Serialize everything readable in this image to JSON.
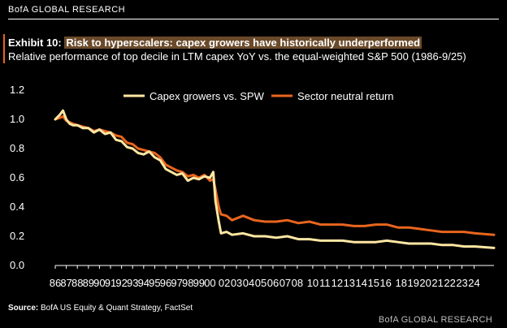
{
  "header": {
    "brand": "BofA GLOBAL RESEARCH",
    "exhibit_label": "Exhibit 10:",
    "title": "Risk to hyperscalers: capex growers have historically underperformed",
    "subtitle": "Relative performance of top decile in LTM capex YoY vs. the equal-weighted S&P 500 (1986-9/25)"
  },
  "footer": {
    "source_label": "Source:",
    "source_text": "BofA US Equity & Quant Strategy, FactSet",
    "brand": "BofA GLOBAL RESEARCH"
  },
  "colors": {
    "background": "#000000",
    "series_1": "#ffe7a3",
    "series_2": "#e8651e",
    "text": "#ffffff",
    "accent": "#e8651e"
  },
  "chart_data": {
    "type": "line",
    "title": "",
    "xlabel": "",
    "ylabel": "",
    "ylim": [
      0,
      1.2
    ],
    "yticks": [
      "0.0",
      "0.2",
      "0.4",
      "0.6",
      "0.8",
      "1.0",
      "1.2"
    ],
    "xlim": [
      1986,
      2025.7
    ],
    "xticks": [
      "86",
      "87",
      "88",
      "89",
      "90",
      "91",
      "92",
      "93",
      "94",
      "95",
      "96",
      "97",
      "98",
      "99",
      "00",
      "02",
      "03",
      "04",
      "05",
      "06",
      "07",
      "08",
      "10",
      "11",
      "12",
      "13",
      "14",
      "15",
      "16",
      "18",
      "19",
      "20",
      "21",
      "22",
      "23",
      "24"
    ],
    "xtick_years": [
      1986,
      1987,
      1988,
      1989,
      1990,
      1991,
      1992,
      1993,
      1994,
      1995,
      1996,
      1997,
      1998,
      1999,
      2000,
      2001.3,
      2002.4,
      2003.5,
      2004.6,
      2005.7,
      2006.8,
      2007.9,
      2009.3,
      2010.4,
      2011.5,
      2012.6,
      2013.7,
      2014.8,
      2015.9,
      2017.3,
      2018.4,
      2019.5,
      2020.6,
      2021.7,
      2022.8,
      2023.9
    ],
    "legend_position": "top",
    "series": [
      {
        "name": "Capex growers vs. SPW",
        "x": [
          1986.0,
          1986.4,
          1986.7,
          1987.0,
          1987.3,
          1987.6,
          1988.0,
          1988.5,
          1989.0,
          1989.5,
          1990.0,
          1990.5,
          1991.0,
          1991.5,
          1992.0,
          1992.5,
          1993.0,
          1993.5,
          1994.0,
          1994.5,
          1995.0,
          1995.5,
          1996.0,
          1996.5,
          1997.0,
          1997.5,
          1998.0,
          1998.5,
          1999.0,
          1999.5,
          2000.0,
          2000.3,
          2000.5,
          2000.8,
          2001.0,
          2001.5,
          2002.0,
          2003.0,
          2004.0,
          2005.0,
          2006.0,
          2007.0,
          2008.0,
          2009.0,
          2010.0,
          2011.0,
          2012.0,
          2013.0,
          2014.0,
          2015.0,
          2016.0,
          2017.0,
          2018.0,
          2019.0,
          2020.0,
          2021.0,
          2022.0,
          2023.0,
          2024.0,
          2025.7
        ],
        "values": [
          1.0,
          1.03,
          1.06,
          1.0,
          0.97,
          0.96,
          0.96,
          0.94,
          0.94,
          0.91,
          0.93,
          0.9,
          0.91,
          0.86,
          0.85,
          0.81,
          0.8,
          0.77,
          0.76,
          0.78,
          0.74,
          0.72,
          0.66,
          0.64,
          0.62,
          0.63,
          0.58,
          0.6,
          0.59,
          0.61,
          0.6,
          0.64,
          0.44,
          0.3,
          0.22,
          0.23,
          0.21,
          0.22,
          0.2,
          0.2,
          0.19,
          0.2,
          0.18,
          0.18,
          0.17,
          0.17,
          0.17,
          0.16,
          0.16,
          0.16,
          0.17,
          0.16,
          0.15,
          0.15,
          0.15,
          0.14,
          0.14,
          0.13,
          0.13,
          0.12
        ]
      },
      {
        "name": "Sector neutral return",
        "x": [
          1986.0,
          1986.4,
          1986.7,
          1987.0,
          1987.3,
          1987.6,
          1988.0,
          1988.5,
          1989.0,
          1989.5,
          1990.0,
          1990.5,
          1991.0,
          1991.5,
          1992.0,
          1992.5,
          1993.0,
          1993.5,
          1994.0,
          1994.5,
          1995.0,
          1995.5,
          1996.0,
          1996.5,
          1997.0,
          1997.5,
          1998.0,
          1998.5,
          1999.0,
          1999.5,
          2000.0,
          2000.3,
          2000.5,
          2000.8,
          2001.0,
          2001.5,
          2002.0,
          2003.0,
          2004.0,
          2005.0,
          2006.0,
          2007.0,
          2008.0,
          2009.0,
          2010.0,
          2011.0,
          2012.0,
          2013.0,
          2014.0,
          2015.0,
          2016.0,
          2017.0,
          2018.0,
          2019.0,
          2020.0,
          2021.0,
          2022.0,
          2023.0,
          2024.0,
          2025.7
        ],
        "values": [
          1.0,
          1.01,
          1.02,
          0.99,
          0.98,
          0.97,
          0.96,
          0.95,
          0.94,
          0.92,
          0.93,
          0.92,
          0.91,
          0.89,
          0.88,
          0.84,
          0.83,
          0.8,
          0.79,
          0.78,
          0.77,
          0.74,
          0.69,
          0.67,
          0.65,
          0.64,
          0.61,
          0.62,
          0.6,
          0.62,
          0.58,
          0.59,
          0.52,
          0.4,
          0.35,
          0.34,
          0.31,
          0.34,
          0.31,
          0.3,
          0.3,
          0.31,
          0.29,
          0.3,
          0.28,
          0.28,
          0.28,
          0.27,
          0.27,
          0.28,
          0.28,
          0.26,
          0.26,
          0.25,
          0.24,
          0.23,
          0.23,
          0.23,
          0.22,
          0.21
        ]
      }
    ]
  }
}
